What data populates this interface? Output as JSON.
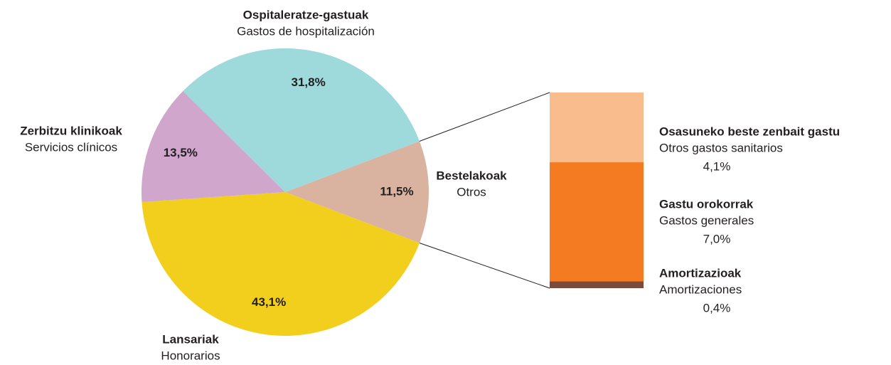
{
  "chart_data": {
    "type": "pie",
    "categories": [
      "Bestelakoak",
      "Lansariak",
      "Zerbitzu klinikoak",
      "Ospitaleratze-gastuak"
    ],
    "subtitles": [
      "Otros",
      "Honorarios",
      "Servicios clínicos",
      "Gastos de hospitalización"
    ],
    "values": [
      11.5,
      43.1,
      13.5,
      31.8
    ],
    "value_labels": [
      "11,5%",
      "43,1%",
      "13,5%",
      "31,8%"
    ],
    "colors": [
      "#d9b3a0",
      "#f2cf1d",
      "#d0a6cd",
      "#9ed9dc"
    ],
    "breakdown": {
      "type": "bar",
      "categories": [
        "Amortizazioak",
        "Gastu orokorrak",
        "Osasuneko beste zenbait gastu"
      ],
      "subtitles": [
        "Amortizaciones",
        "Gastos generales",
        "Otros gastos sanitarios"
      ],
      "values": [
        0.4,
        7.0,
        4.1
      ],
      "value_labels": [
        "0,4%",
        "7,0%",
        "4,1%"
      ],
      "colors": [
        "#7b4a38",
        "#f47b22",
        "#f9bc8c"
      ]
    }
  }
}
